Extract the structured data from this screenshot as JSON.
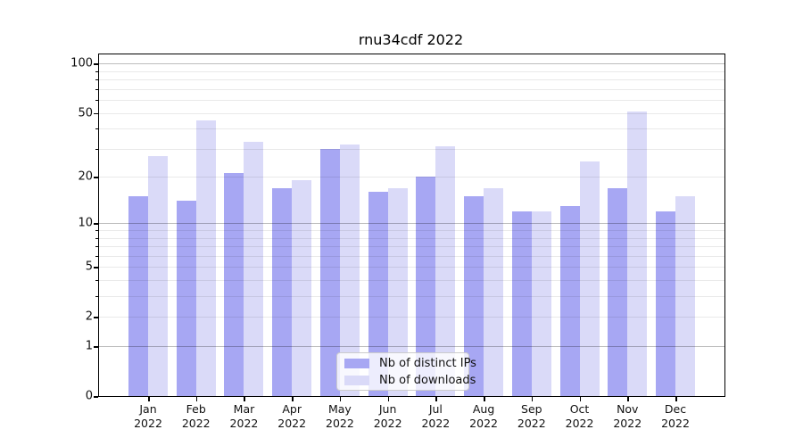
{
  "title": "rnu34cdf 2022",
  "legend": {
    "items": [
      {
        "label": "Nb of distinct IPs"
      },
      {
        "label": "Nb of downloads"
      }
    ]
  },
  "chart_data": {
    "type": "bar",
    "title": "rnu34cdf 2022",
    "categories": [
      "Jan",
      "Feb",
      "Mar",
      "Apr",
      "May",
      "Jun",
      "Jul",
      "Aug",
      "Sep",
      "Oct",
      "Nov",
      "Dec"
    ],
    "year": "2022",
    "series": [
      {
        "name": "Nb of distinct IPs",
        "color": "#a7a7f3",
        "values": [
          15,
          14,
          21,
          17,
          30,
          16,
          20,
          15,
          12,
          13,
          17,
          12
        ]
      },
      {
        "name": "Nb of downloads",
        "color": "#dadaf8",
        "values": [
          27,
          45,
          33,
          19,
          32,
          17,
          31,
          17,
          12,
          25,
          51,
          15
        ]
      }
    ],
    "yscale": "log1p",
    "ylim": [
      0,
      114
    ],
    "yticks": [
      0,
      1,
      2,
      5,
      10,
      20,
      50,
      100
    ],
    "major_gridlines": [
      1,
      10,
      100
    ],
    "minor_gridlines": [
      2,
      3,
      4,
      5,
      6,
      7,
      8,
      9,
      20,
      30,
      40,
      50,
      60,
      70,
      80,
      90
    ],
    "grid": true,
    "legend_position": "lower center"
  }
}
